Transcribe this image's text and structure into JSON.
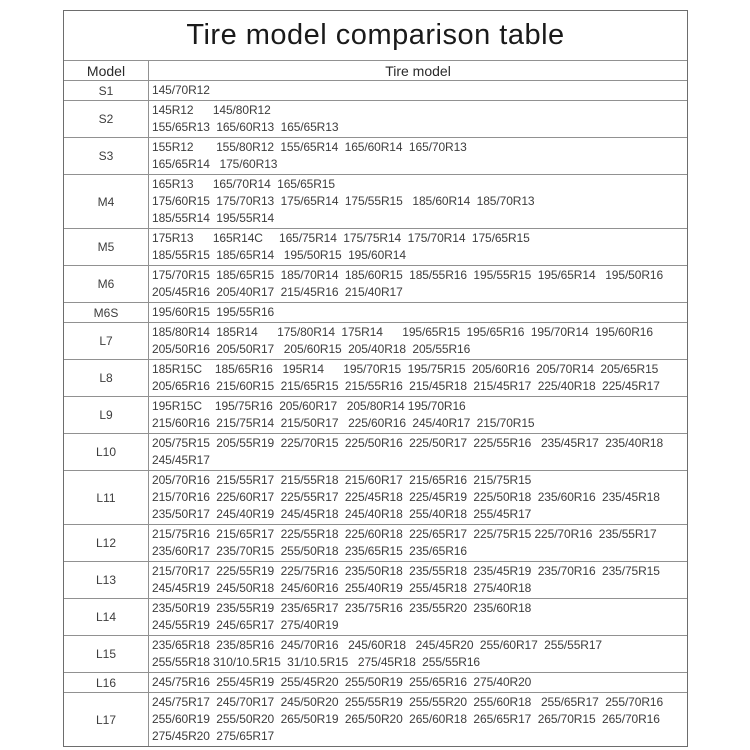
{
  "title": "Tire model comparison table",
  "columns": {
    "model": "Model",
    "tire": "Tire model"
  },
  "rows": [
    {
      "model": "S1",
      "lines": [
        "145/70R12"
      ]
    },
    {
      "model": "S2",
      "lines": [
        "145R12      145/80R12",
        "155/65R13  165/60R13  165/65R13"
      ]
    },
    {
      "model": "S3",
      "lines": [
        "155R12       155/80R12  155/65R14  165/60R14  165/70R13",
        "165/65R14   175/60R13"
      ]
    },
    {
      "model": "M4",
      "lines": [
        "165R13      165/70R14  165/65R15",
        "175/60R15  175/70R13  175/65R14  175/55R15   185/60R14  185/70R13",
        "185/55R14  195/55R14"
      ]
    },
    {
      "model": "M5",
      "lines": [
        "175R13      165R14C     165/75R14  175/75R14  175/70R14  175/65R15",
        "185/55R15  185/65R14   195/50R15  195/60R14"
      ]
    },
    {
      "model": "M6",
      "lines": [
        "175/70R15  185/65R15  185/70R14  185/60R15  185/55R16  195/55R15  195/65R14   195/50R16",
        "205/45R16  205/40R17  215/45R16  215/40R17"
      ]
    },
    {
      "model": "M6S",
      "lines": [
        "195/60R15  195/55R16"
      ]
    },
    {
      "model": "L7",
      "lines": [
        "185/80R14  185R14      175/80R14  175R14      195/65R15  195/65R16  195/70R14  195/60R16",
        "205/50R16  205/50R17   205/60R15  205/40R18  205/55R16"
      ]
    },
    {
      "model": "L8",
      "lines": [
        "185R15C    185/65R16   195R14      195/70R15  195/75R15  205/60R16  205/70R14  205/65R15",
        "205/65R16  215/60R15  215/65R15  215/55R16  215/45R18  215/45R17  225/40R18  225/45R17"
      ]
    },
    {
      "model": "L9",
      "lines": [
        "195R15C    195/75R16  205/60R17   205/80R14 195/70R16",
        "215/60R16  215/75R14  215/50R17   225/60R16  245/40R17  215/70R15"
      ]
    },
    {
      "model": "L10",
      "lines": [
        "205/75R15  205/55R19  225/70R15  225/50R16  225/50R17  225/55R16   235/45R17  235/40R18",
        "245/45R17"
      ]
    },
    {
      "model": "L11",
      "lines": [
        "205/70R16  215/55R17  215/55R18  215/60R17  215/65R16  215/75R15",
        "215/70R16  225/60R17  225/55R17  225/45R18  225/45R19  225/50R18  235/60R16  235/45R18",
        "235/50R17  245/40R19  245/45R18  245/40R18  255/40R18  255/45R17"
      ]
    },
    {
      "model": "L12",
      "lines": [
        "215/75R16  215/65R17  225/55R18  225/60R18  225/65R17  225/75R15 225/70R16  235/55R17",
        "235/60R17  235/70R15  255/50R18  235/65R15  235/65R16"
      ]
    },
    {
      "model": "L13",
      "lines": [
        "215/70R17  225/55R19  225/75R16  235/50R18  235/55R18  235/45R19  235/70R16  235/75R15",
        "245/45R19  245/50R18  245/60R16  255/40R19  255/45R18  275/40R18"
      ]
    },
    {
      "model": "L14",
      "lines": [
        "235/50R19  235/55R19  235/65R17  235/75R16  235/55R20  235/60R18",
        "245/55R19  245/65R17  275/40R19"
      ]
    },
    {
      "model": "L15",
      "lines": [
        "235/65R18  235/85R16  245/70R16   245/60R18   245/45R20  255/60R17  255/55R17",
        "255/55R18 310/10.5R15  31/10.5R15   275/45R18  255/55R16"
      ]
    },
    {
      "model": "L16",
      "lines": [
        "245/75R16  255/45R19  255/45R20  255/50R19  255/65R16  275/40R20"
      ]
    },
    {
      "model": "L17",
      "lines": [
        "245/75R17  245/70R17  245/50R20  255/55R19  255/55R20  255/60R18   255/65R17  255/70R16",
        "255/60R19  255/50R20  265/50R19  265/50R20  265/60R18  265/65R17  265/70R15  265/70R16",
        "275/45R20  275/65R17"
      ]
    }
  ],
  "colors": {
    "text": "#3d3d3d",
    "title_text": "#1a1a1a",
    "border": "#919191",
    "outer_border": "#6d6d6d",
    "background": "#ffffff"
  }
}
